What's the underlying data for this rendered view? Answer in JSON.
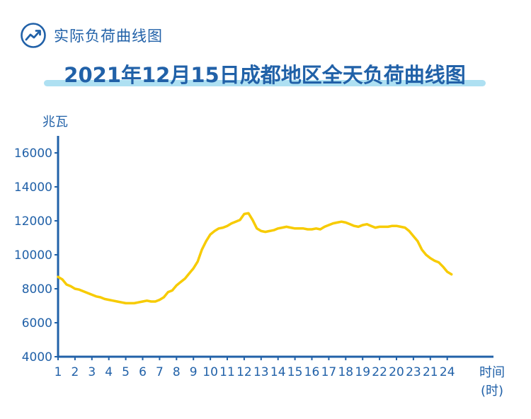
{
  "header": {
    "icon": "trend-up-circle-icon",
    "label": "实际负荷曲线图"
  },
  "colors": {
    "accent": "#2161a8",
    "line": "#f7cb00",
    "title_underline": "#aee0f2"
  },
  "chart_data": {
    "type": "line",
    "title": "2021年12月15日成都地区全天负荷曲线图",
    "ylabel": "兆瓦",
    "xlabel": "时间",
    "xlabel_unit": "(时)",
    "ylim": [
      4000,
      17000
    ],
    "yticks": [
      4000,
      6000,
      8000,
      10000,
      12000,
      14000,
      16000
    ],
    "x_categories": [
      "1",
      "2",
      "3",
      "4",
      "5",
      "6",
      "7",
      "8",
      "9",
      "10",
      "11",
      "12",
      "13",
      "14",
      "15",
      "16",
      "17",
      "18",
      "19",
      "22",
      "20",
      "23",
      "21",
      "24"
    ],
    "grid": false,
    "series": [
      {
        "x": [
          0.0,
          0.25,
          0.5,
          0.75,
          1.0,
          1.25,
          1.5,
          1.75,
          2.0,
          2.25,
          2.5,
          2.75,
          3.0,
          3.25,
          3.5,
          3.75,
          4.0,
          4.25,
          4.5,
          4.75,
          5.0,
          5.25,
          5.5,
          5.75,
          6.0,
          6.25,
          6.5,
          6.75,
          7.0,
          7.25,
          7.5,
          7.75,
          8.0,
          8.25,
          8.5,
          8.75,
          9.0,
          9.25,
          9.5,
          9.75,
          10.0,
          10.25,
          10.5,
          10.75,
          11.0,
          11.25,
          11.5,
          11.75,
          12.0,
          12.25,
          12.5,
          12.75,
          13.0,
          13.25,
          13.5,
          13.75,
          14.0,
          14.25,
          14.5,
          14.75,
          15.0,
          15.25,
          15.5,
          15.75,
          16.0,
          16.25,
          16.5,
          16.75,
          17.0,
          17.25,
          17.5,
          17.75,
          18.0,
          18.25,
          18.5,
          18.75,
          19.0,
          19.25,
          19.5,
          19.75,
          20.0,
          20.25,
          20.5,
          20.75,
          21.0,
          21.25,
          21.5,
          21.75,
          22.0,
          22.25,
          22.5,
          22.75,
          23.0,
          23.25
        ],
        "values": [
          8700,
          8550,
          8250,
          8150,
          8000,
          7950,
          7850,
          7750,
          7650,
          7550,
          7500,
          7400,
          7350,
          7300,
          7250,
          7200,
          7150,
          7150,
          7150,
          7200,
          7250,
          7300,
          7250,
          7250,
          7350,
          7500,
          7800,
          7900,
          8200,
          8400,
          8600,
          8900,
          9200,
          9600,
          10300,
          10800,
          11200,
          11400,
          11550,
          11600,
          11700,
          11850,
          11950,
          12050,
          12400,
          12450,
          12050,
          11550,
          11400,
          11350,
          11400,
          11450,
          11550,
          11600,
          11650,
          11600,
          11550,
          11550,
          11550,
          11500,
          11500,
          11550,
          11500,
          11650,
          11750,
          11850,
          11900,
          11950,
          11900,
          11800,
          11700,
          11650,
          11750,
          11800,
          11700,
          11600,
          11650,
          11650,
          11650,
          11700,
          11700,
          11650,
          11600,
          11400,
          11100,
          10800,
          10300,
          10000,
          9800,
          9650,
          9550,
          9300,
          9000,
          8850
        ]
      }
    ]
  }
}
